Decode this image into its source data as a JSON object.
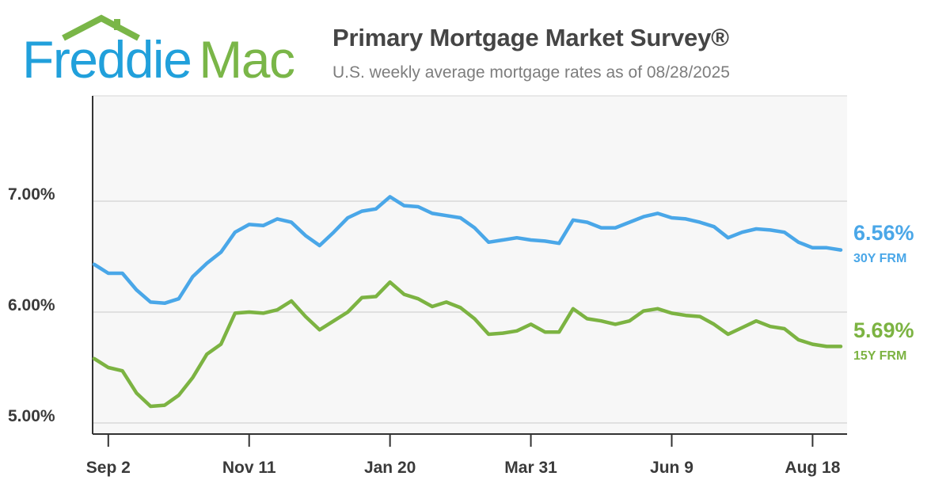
{
  "header": {
    "logo": {
      "word1": "Freddie",
      "word2": "Mac"
    },
    "title": "Primary Mortgage Market Survey®",
    "subtitle": "U.S. weekly average mortgage rates as of 08/28/2025"
  },
  "colors": {
    "rate30": "#4aa7e8",
    "rate15": "#7cb342",
    "logo_blue": "#21a0db",
    "logo_green": "#7ab648"
  },
  "chart_data": {
    "type": "line",
    "title": "Primary Mortgage Market Survey®",
    "subtitle": "U.S. weekly average mortgage rates as of 08/28/2025",
    "ylim": [
      4.9,
      7.95
    ],
    "yticks": [
      5.0,
      6.0,
      7.0
    ],
    "ytick_labels": [
      "5.00%",
      "6.00%",
      "7.00%"
    ],
    "xtick_labels": [
      "Sep 2",
      "Nov 11",
      "Jan 20",
      "Mar 31",
      "Jun 9",
      "Aug 18"
    ],
    "xtick_index": [
      1,
      11,
      21,
      31,
      41,
      51
    ],
    "grid": true,
    "series": [
      {
        "name": "30Y FRM",
        "end_value_label": "6.56%",
        "values": [
          6.43,
          6.35,
          6.35,
          6.2,
          6.09,
          6.08,
          6.12,
          6.32,
          6.44,
          6.54,
          6.72,
          6.79,
          6.78,
          6.84,
          6.81,
          6.69,
          6.6,
          6.72,
          6.85,
          6.91,
          6.93,
          7.04,
          6.96,
          6.95,
          6.89,
          6.87,
          6.85,
          6.76,
          6.63,
          6.65,
          6.67,
          6.65,
          6.64,
          6.62,
          6.83,
          6.81,
          6.76,
          6.76,
          6.81,
          6.86,
          6.89,
          6.85,
          6.84,
          6.81,
          6.77,
          6.67,
          6.72,
          6.75,
          6.74,
          6.72,
          6.63,
          6.58,
          6.58,
          6.56
        ]
      },
      {
        "name": "15Y FRM",
        "end_value_label": "5.69%",
        "values": [
          5.58,
          5.5,
          5.47,
          5.27,
          5.15,
          5.16,
          5.25,
          5.41,
          5.62,
          5.71,
          5.99,
          6.0,
          5.99,
          6.02,
          6.1,
          5.96,
          5.84,
          5.92,
          6.0,
          6.13,
          6.14,
          6.27,
          6.16,
          6.12,
          6.05,
          6.09,
          6.04,
          5.94,
          5.8,
          5.81,
          5.83,
          5.89,
          5.82,
          5.82,
          6.03,
          5.94,
          5.92,
          5.89,
          5.92,
          6.01,
          6.03,
          5.99,
          5.97,
          5.96,
          5.89,
          5.8,
          5.86,
          5.92,
          5.87,
          5.85,
          5.75,
          5.71,
          5.69,
          5.69
        ]
      }
    ]
  }
}
